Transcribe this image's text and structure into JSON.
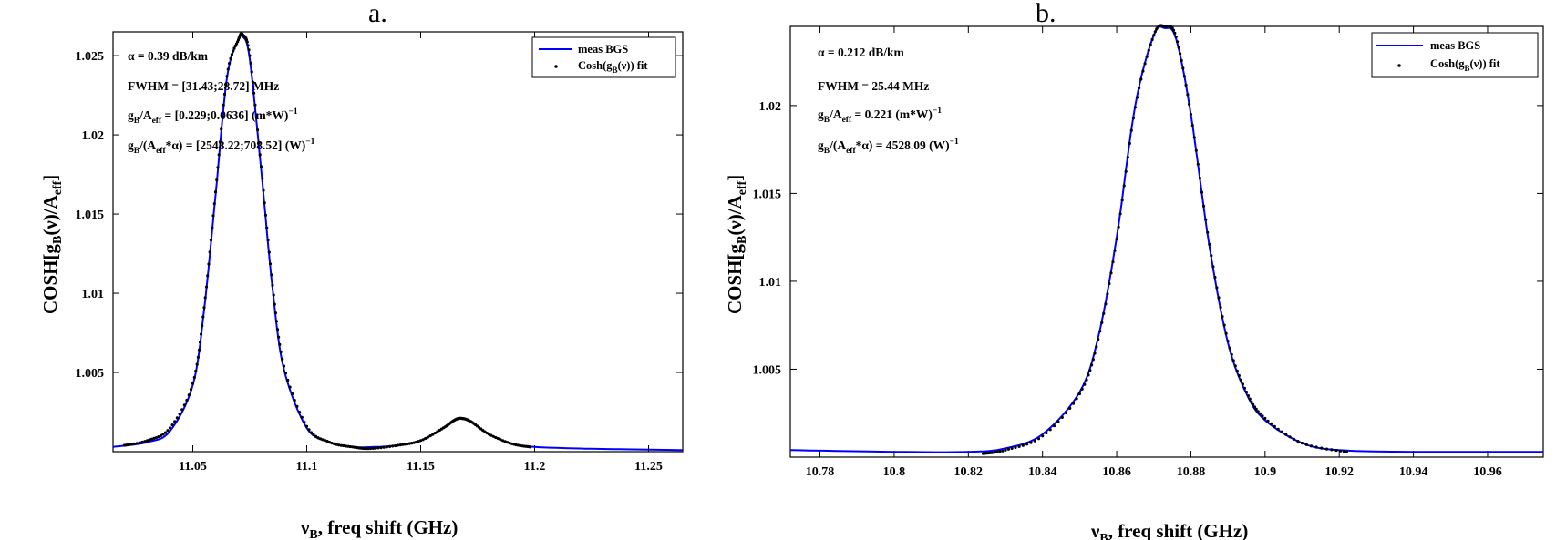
{
  "panels": [
    {
      "letter": "a.",
      "annotations": {
        "alpha": "α = 0.39  dB/km",
        "fwhm": "FWHM =  [31.43;28.72]  MHz",
        "gb_aeff_main": "g",
        "gb_aeff_sub": "B",
        "gb_aeff_mid": "/A",
        "gb_aeff_sub2": "eff",
        "gb_aeff_rest": " =  [0.229;0.0636]  (m*W)",
        "gb_aeff_exp": "−1",
        "gb_aeffa_main": "g",
        "gb_aeffa_sub": "B",
        "gb_aeffa_mid": "/(A",
        "gb_aeffa_sub2": "eff",
        "gb_aeffa_rest": "*α) =  [2548.22;708.52]  (W)",
        "gb_aeffa_exp": "−1"
      },
      "legend": {
        "line_label": "meas BGS",
        "dot_label_main": "Cosh(g",
        "dot_label_sub": "B",
        "dot_label_rest": "(ν)) fit"
      },
      "xlabel": {
        "nu": "ν",
        "sub": "B",
        "rest": ", freq shift (GHz)"
      },
      "ylabel": {
        "main": "COSH[g",
        "sub": "B",
        "mid": "(ν)/A",
        "sub2": "eff",
        "end": "]"
      },
      "xticks": [
        "11.05",
        "11.1",
        "11.15",
        "11.2",
        "11.25"
      ],
      "yticks": [
        "1.005",
        "1.01",
        "1.015",
        "1.02",
        "1.025"
      ]
    },
    {
      "letter": "b.",
      "annotations": {
        "alpha": "α = 0.212  dB/km",
        "fwhm": "FWHM =  25.44  MHz",
        "gb_aeff_main": "g",
        "gb_aeff_sub": "B",
        "gb_aeff_mid": "/A",
        "gb_aeff_sub2": "eff",
        "gb_aeff_rest": " =  0.221  (m*W)",
        "gb_aeff_exp": "−1",
        "gb_aeffa_main": "g",
        "gb_aeffa_sub": "B",
        "gb_aeffa_mid": "/(A",
        "gb_aeffa_sub2": "eff",
        "gb_aeffa_rest": "*α) =  4528.09  (W)",
        "gb_aeffa_exp": "−1"
      },
      "legend": {
        "line_label": "meas BGS",
        "dot_label_main": "Cosh(g",
        "dot_label_sub": "B",
        "dot_label_rest": "(ν)) fit"
      },
      "xlabel": {
        "nu": "ν",
        "sub": "B",
        "rest": ", freq shift (GHz)"
      },
      "ylabel": {
        "main": "COSH[g",
        "sub": "B",
        "mid": "(ν)/A",
        "sub2": "eff",
        "end": "]"
      },
      "xticks": [
        "10.78",
        "10.8",
        "10.82",
        "10.84",
        "10.86",
        "10.88",
        "10.9",
        "10.92",
        "10.94",
        "10.96"
      ],
      "yticks": [
        "1.005",
        "1.01",
        "1.015",
        "1.02"
      ]
    }
  ],
  "chart_data": [
    {
      "type": "line",
      "xlim": [
        11.015,
        11.265
      ],
      "ylim": [
        1.0,
        1.0265
      ],
      "series": [
        {
          "name": "meas BGS",
          "color": "#0000ff",
          "style": "line",
          "x": [
            11.015,
            11.03,
            11.04,
            11.05,
            11.055,
            11.06,
            11.065,
            11.07,
            11.072,
            11.075,
            11.08,
            11.085,
            11.09,
            11.1,
            11.11,
            11.12,
            11.13,
            11.14,
            11.15,
            11.16,
            11.165,
            11.168,
            11.172,
            11.18,
            11.19,
            11.2,
            11.22,
            11.24,
            11.265
          ],
          "y": [
            1.0003,
            1.0006,
            1.0013,
            1.0042,
            1.009,
            1.0162,
            1.0236,
            1.026,
            1.0262,
            1.0248,
            1.0178,
            1.0103,
            1.0052,
            1.0015,
            1.0006,
            1.0003,
            1.0003,
            1.0004,
            1.0007,
            1.0015,
            1.002,
            1.0021,
            1.0019,
            1.0011,
            1.0005,
            1.0003,
            1.0002,
            1.00015,
            1.0001
          ]
        },
        {
          "name": "Cosh(gB(ν)) fit",
          "color": "#000000",
          "style": "dots",
          "x": [
            11.02,
            11.03,
            11.04,
            11.05,
            11.055,
            11.06,
            11.065,
            11.07,
            11.072,
            11.075,
            11.08,
            11.085,
            11.09,
            11.1,
            11.11,
            11.12,
            11.128,
            11.14,
            11.15,
            11.16,
            11.165,
            11.168,
            11.172,
            11.18,
            11.19,
            11.198
          ],
          "y": [
            1.0004,
            1.0007,
            1.0015,
            1.0043,
            1.0091,
            1.0164,
            1.0237,
            1.026,
            1.0263,
            1.025,
            1.018,
            1.0105,
            1.0054,
            1.0016,
            1.0006,
            1.0003,
            1.0002,
            1.0004,
            1.0007,
            1.0015,
            1.002,
            1.0021,
            1.0019,
            1.0011,
            1.0005,
            1.0003
          ]
        }
      ]
    },
    {
      "type": "line",
      "xlim": [
        10.772,
        10.975
      ],
      "ylim": [
        1.0,
        1.0245
      ],
      "series": [
        {
          "name": "meas BGS",
          "color": "#0000ff",
          "style": "line",
          "x": [
            10.772,
            10.8,
            10.82,
            10.83,
            10.84,
            10.85,
            10.855,
            10.86,
            10.865,
            10.87,
            10.873,
            10.876,
            10.88,
            10.885,
            10.89,
            10.895,
            10.9,
            10.91,
            10.92,
            10.94,
            10.96,
            10.975
          ],
          "y": [
            1.0004,
            1.0003,
            1.0003,
            1.0005,
            1.0013,
            1.0037,
            1.0068,
            1.0125,
            1.02,
            1.024,
            1.0244,
            1.0238,
            1.0195,
            1.012,
            1.0065,
            1.0036,
            1.0021,
            1.0008,
            1.0004,
            1.0003,
            1.0003,
            1.0003
          ]
        },
        {
          "name": "Cosh(gB(ν)) fit",
          "color": "#000000",
          "style": "dots",
          "x": [
            10.824,
            10.83,
            10.84,
            10.85,
            10.855,
            10.86,
            10.865,
            10.87,
            10.873,
            10.876,
            10.88,
            10.885,
            10.89,
            10.895,
            10.9,
            10.91,
            10.922
          ],
          "y": [
            1.0002,
            1.0004,
            1.0012,
            1.0036,
            1.0067,
            1.0124,
            1.0199,
            1.024,
            1.0245,
            1.0239,
            1.0195,
            1.0121,
            1.0066,
            1.0037,
            1.0022,
            1.0008,
            1.0003
          ]
        }
      ]
    }
  ]
}
